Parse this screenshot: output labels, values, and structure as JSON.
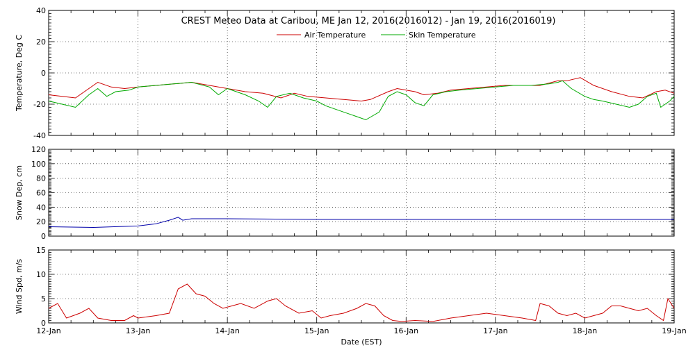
{
  "title": "CREST Meteo Data at Caribou, ME   Jan 12, 2016(2016012) - Jan 19, 2016(2016019)",
  "xlabel": "Date (EST)",
  "x_ticks": [
    "12-Jan",
    "13-Jan",
    "14-Jan",
    "15-Jan",
    "16-Jan",
    "17-Jan",
    "18-Jan",
    "19-Jan"
  ],
  "colors": {
    "air": "#cc0000",
    "skin": "#00aa00",
    "snow": "#0000aa",
    "wind": "#cc0000",
    "grid": "#000000"
  },
  "chart_data": [
    {
      "type": "line",
      "ylabel": "Temperature, Deg C",
      "ylim": [
        -40,
        40
      ],
      "yticks": [
        -40,
        -20,
        0,
        20,
        40
      ],
      "xlim": [
        0,
        7
      ],
      "grid": true,
      "legend_position": "top-center",
      "series": [
        {
          "name": "Air Temperature",
          "color_key": "air",
          "points": [
            [
              0,
              -14
            ],
            [
              0.15,
              -15
            ],
            [
              0.3,
              -16
            ],
            [
              0.45,
              -10
            ],
            [
              0.55,
              -6
            ],
            [
              0.7,
              -9
            ],
            [
              0.85,
              -10
            ],
            [
              1.0,
              -9
            ],
            [
              1.2,
              -8
            ],
            [
              1.4,
              -7
            ],
            [
              1.6,
              -6
            ],
            [
              1.8,
              -8
            ],
            [
              2.0,
              -10
            ],
            [
              2.2,
              -12
            ],
            [
              2.4,
              -13
            ],
            [
              2.6,
              -16
            ],
            [
              2.75,
              -13
            ],
            [
              2.9,
              -15
            ],
            [
              3.1,
              -16
            ],
            [
              3.3,
              -17
            ],
            [
              3.5,
              -18
            ],
            [
              3.6,
              -17
            ],
            [
              3.8,
              -12
            ],
            [
              3.9,
              -10
            ],
            [
              4.0,
              -11
            ],
            [
              4.1,
              -12
            ],
            [
              4.2,
              -14
            ],
            [
              4.35,
              -13
            ],
            [
              4.5,
              -11
            ],
            [
              4.7,
              -10
            ],
            [
              4.9,
              -9
            ],
            [
              5.1,
              -8
            ],
            [
              5.3,
              -8
            ],
            [
              5.5,
              -8
            ],
            [
              5.7,
              -5
            ],
            [
              5.8,
              -5
            ],
            [
              5.95,
              -3
            ],
            [
              6.1,
              -8
            ],
            [
              6.3,
              -12
            ],
            [
              6.5,
              -15
            ],
            [
              6.65,
              -16
            ],
            [
              6.8,
              -12
            ],
            [
              6.9,
              -11
            ],
            [
              7.0,
              -13
            ]
          ]
        },
        {
          "name": "Skin Temperature",
          "color_key": "skin",
          "points": [
            [
              0,
              -18
            ],
            [
              0.15,
              -20
            ],
            [
              0.3,
              -22
            ],
            [
              0.45,
              -14
            ],
            [
              0.55,
              -10
            ],
            [
              0.65,
              -15
            ],
            [
              0.75,
              -12
            ],
            [
              0.9,
              -11
            ],
            [
              1.0,
              -9
            ],
            [
              1.2,
              -8
            ],
            [
              1.4,
              -7
            ],
            [
              1.6,
              -6
            ],
            [
              1.8,
              -9
            ],
            [
              1.9,
              -14
            ],
            [
              2.0,
              -10
            ],
            [
              2.2,
              -14
            ],
            [
              2.35,
              -18
            ],
            [
              2.45,
              -22
            ],
            [
              2.55,
              -15
            ],
            [
              2.7,
              -13
            ],
            [
              2.85,
              -16
            ],
            [
              3.0,
              -18
            ],
            [
              3.1,
              -21
            ],
            [
              3.2,
              -23
            ],
            [
              3.3,
              -25
            ],
            [
              3.45,
              -28
            ],
            [
              3.55,
              -30
            ],
            [
              3.7,
              -25
            ],
            [
              3.8,
              -15
            ],
            [
              3.9,
              -12
            ],
            [
              4.0,
              -14
            ],
            [
              4.1,
              -19
            ],
            [
              4.2,
              -21
            ],
            [
              4.3,
              -14
            ],
            [
              4.45,
              -12
            ],
            [
              4.6,
              -11
            ],
            [
              4.8,
              -10
            ],
            [
              5.0,
              -9
            ],
            [
              5.2,
              -8
            ],
            [
              5.4,
              -8
            ],
            [
              5.6,
              -7
            ],
            [
              5.7,
              -6
            ],
            [
              5.75,
              -5
            ],
            [
              5.85,
              -10
            ],
            [
              6.0,
              -15
            ],
            [
              6.1,
              -17
            ],
            [
              6.2,
              -18
            ],
            [
              6.35,
              -20
            ],
            [
              6.5,
              -22
            ],
            [
              6.6,
              -20
            ],
            [
              6.7,
              -15
            ],
            [
              6.8,
              -13
            ],
            [
              6.85,
              -22
            ],
            [
              6.95,
              -18
            ],
            [
              7.0,
              -15
            ]
          ]
        }
      ]
    },
    {
      "type": "line",
      "ylabel": "Snow Dep, cm",
      "ylim": [
        0,
        120
      ],
      "yticks": [
        0,
        20,
        40,
        60,
        80,
        100,
        120
      ],
      "xlim": [
        0,
        7
      ],
      "grid": true,
      "series": [
        {
          "color_key": "snow",
          "points": [
            [
              0,
              13
            ],
            [
              0.5,
              12
            ],
            [
              1.0,
              14
            ],
            [
              1.2,
              17
            ],
            [
              1.35,
              22
            ],
            [
              1.45,
              26
            ],
            [
              1.5,
              22
            ],
            [
              1.6,
              24
            ],
            [
              2.0,
              24
            ],
            [
              3.0,
              23
            ],
            [
              4.0,
              23
            ],
            [
              5.0,
              23
            ],
            [
              6.0,
              23
            ],
            [
              7.0,
              23
            ]
          ]
        }
      ]
    },
    {
      "type": "line",
      "ylabel": "Wind Spd, m/s",
      "ylim": [
        0,
        15
      ],
      "yticks": [
        0,
        5,
        10,
        15
      ],
      "xlim": [
        0,
        7
      ],
      "grid": true,
      "series": [
        {
          "color_key": "wind",
          "points": [
            [
              0,
              3
            ],
            [
              0.1,
              4
            ],
            [
              0.2,
              1
            ],
            [
              0.35,
              2
            ],
            [
              0.45,
              3
            ],
            [
              0.55,
              1
            ],
            [
              0.7,
              0.5
            ],
            [
              0.85,
              0.5
            ],
            [
              0.95,
              1.5
            ],
            [
              1.0,
              1
            ],
            [
              1.2,
              1.5
            ],
            [
              1.35,
              2
            ],
            [
              1.45,
              7
            ],
            [
              1.55,
              8
            ],
            [
              1.65,
              6
            ],
            [
              1.75,
              5.5
            ],
            [
              1.85,
              4
            ],
            [
              1.95,
              3
            ],
            [
              2.05,
              3.5
            ],
            [
              2.15,
              4
            ],
            [
              2.3,
              3
            ],
            [
              2.45,
              4.5
            ],
            [
              2.55,
              5
            ],
            [
              2.65,
              3.5
            ],
            [
              2.8,
              2
            ],
            [
              2.95,
              2.5
            ],
            [
              3.05,
              1
            ],
            [
              3.15,
              1.5
            ],
            [
              3.3,
              2
            ],
            [
              3.45,
              3
            ],
            [
              3.55,
              4
            ],
            [
              3.65,
              3.5
            ],
            [
              3.75,
              1.5
            ],
            [
              3.85,
              0.5
            ],
            [
              3.95,
              0.3
            ],
            [
              4.1,
              0.5
            ],
            [
              4.3,
              0.3
            ],
            [
              4.5,
              1
            ],
            [
              4.7,
              1.5
            ],
            [
              4.9,
              2
            ],
            [
              5.1,
              1.5
            ],
            [
              5.3,
              1
            ],
            [
              5.45,
              0.5
            ],
            [
              5.5,
              4
            ],
            [
              5.6,
              3.5
            ],
            [
              5.7,
              2
            ],
            [
              5.8,
              1.5
            ],
            [
              5.9,
              2
            ],
            [
              6.0,
              1
            ],
            [
              6.1,
              1.5
            ],
            [
              6.2,
              2
            ],
            [
              6.3,
              3.5
            ],
            [
              6.4,
              3.5
            ],
            [
              6.5,
              3
            ],
            [
              6.6,
              2.5
            ],
            [
              6.7,
              3
            ],
            [
              6.8,
              1.5
            ],
            [
              6.88,
              0.5
            ],
            [
              6.93,
              5
            ],
            [
              7.0,
              3
            ]
          ]
        }
      ]
    }
  ]
}
